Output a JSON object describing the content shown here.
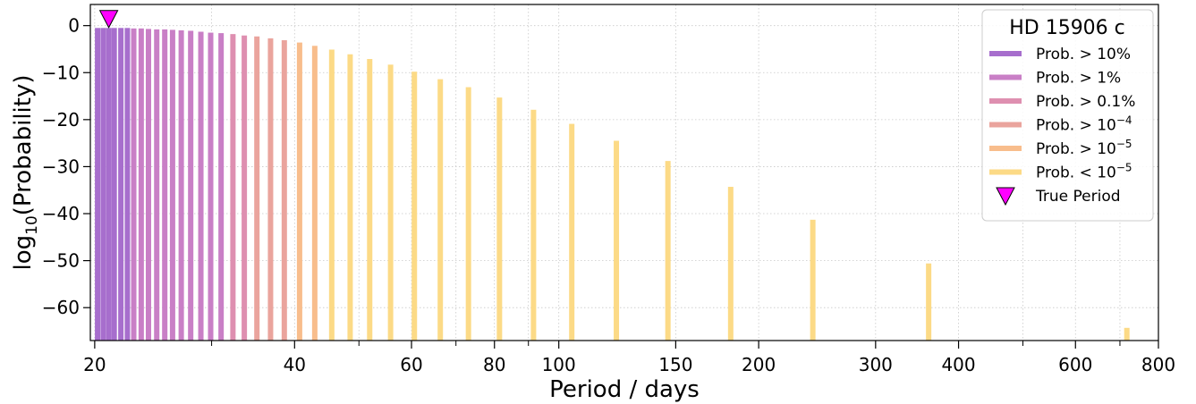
{
  "chart_data": {
    "type": "bar",
    "x_scale": "log",
    "xlabel": "Period / days",
    "ylabel_parts": {
      "base": "log",
      "sub": "10",
      "rest": "(Probability)"
    },
    "xlim": [
      19.7,
      800
    ],
    "ylim": [
      -67,
      4.5
    ],
    "grid": true,
    "x_ticks": [
      20,
      40,
      60,
      80,
      100,
      150,
      200,
      300,
      400,
      600,
      800
    ],
    "x_minor_ticks": [
      30,
      50,
      70,
      90,
      500,
      700
    ],
    "y_ticks": [
      0,
      -10,
      -20,
      -30,
      -40,
      -50,
      -60
    ],
    "y_tick_labels": [
      "0",
      "−10",
      "−20",
      "−30",
      "−40",
      "−50",
      "−60"
    ],
    "legend": {
      "title": "HD 15906 c",
      "placement": "top-right",
      "entries": [
        {
          "label": "Prob. > 10%",
          "color": "#a76ecd",
          "kind": "line"
        },
        {
          "label": "Prob. > 1%",
          "color": "#c97fc6",
          "kind": "line"
        },
        {
          "label": "Prob. > 0.1%",
          "color": "#de8fb0",
          "kind": "line"
        },
        {
          "label": "Prob. > 10",
          "sup": "−4",
          "color": "#eaa49d",
          "kind": "line"
        },
        {
          "label": "Prob. > 10",
          "sup": "−5",
          "color": "#f8bd8c",
          "kind": "line"
        },
        {
          "label": "Prob. < 10",
          "sup": "−5",
          "color": "#fcda86",
          "kind": "line"
        },
        {
          "label": "True Period",
          "color": "#ff00ff",
          "kind": "marker"
        }
      ]
    },
    "true_period": {
      "x": 21.0,
      "y": 1.5
    },
    "bars": [
      {
        "x": 20.2,
        "y": -0.5,
        "cls": 0
      },
      {
        "x": 20.6,
        "y": -0.5,
        "cls": 0
      },
      {
        "x": 21.0,
        "y": -0.5,
        "cls": 0
      },
      {
        "x": 21.4,
        "y": -0.5,
        "cls": 0
      },
      {
        "x": 21.9,
        "y": -0.5,
        "cls": 0
      },
      {
        "x": 22.4,
        "y": -0.5,
        "cls": 0
      },
      {
        "x": 22.9,
        "y": -0.6,
        "cls": 1
      },
      {
        "x": 23.5,
        "y": -0.6,
        "cls": 1
      },
      {
        "x": 24.1,
        "y": -0.7,
        "cls": 1
      },
      {
        "x": 24.8,
        "y": -0.8,
        "cls": 1
      },
      {
        "x": 25.5,
        "y": -0.8,
        "cls": 1
      },
      {
        "x": 26.2,
        "y": -0.9,
        "cls": 1
      },
      {
        "x": 27.0,
        "y": -1.0,
        "cls": 1
      },
      {
        "x": 27.9,
        "y": -1.1,
        "cls": 1
      },
      {
        "x": 28.9,
        "y": -1.3,
        "cls": 1
      },
      {
        "x": 29.9,
        "y": -1.5,
        "cls": 1
      },
      {
        "x": 31.0,
        "y": -1.6,
        "cls": 1
      },
      {
        "x": 32.3,
        "y": -1.8,
        "cls": 2
      },
      {
        "x": 33.6,
        "y": -2.1,
        "cls": 2
      },
      {
        "x": 35.1,
        "y": -2.3,
        "cls": 3
      },
      {
        "x": 36.8,
        "y": -2.7,
        "cls": 3
      },
      {
        "x": 38.6,
        "y": -3.1,
        "cls": 3
      },
      {
        "x": 40.7,
        "y": -3.6,
        "cls": 4
      },
      {
        "x": 42.9,
        "y": -4.3,
        "cls": 4
      },
      {
        "x": 45.5,
        "y": -5.1,
        "cls": 5
      },
      {
        "x": 48.5,
        "y": -6.1,
        "cls": 5
      },
      {
        "x": 51.9,
        "y": -7.1,
        "cls": 5
      },
      {
        "x": 55.8,
        "y": -8.3,
        "cls": 5
      },
      {
        "x": 60.6,
        "y": -9.8,
        "cls": 5
      },
      {
        "x": 66.3,
        "y": -11.4,
        "cls": 5
      },
      {
        "x": 73.1,
        "y": -13.1,
        "cls": 5
      },
      {
        "x": 81.4,
        "y": -15.3,
        "cls": 5
      },
      {
        "x": 91.6,
        "y": -17.9,
        "cls": 5
      },
      {
        "x": 104.6,
        "y": -20.9,
        "cls": 5
      },
      {
        "x": 122.1,
        "y": -24.5,
        "cls": 5
      },
      {
        "x": 146.0,
        "y": -28.8,
        "cls": 5
      },
      {
        "x": 181.5,
        "y": -34.3,
        "cls": 5
      },
      {
        "x": 241.3,
        "y": -41.3,
        "cls": 5
      },
      {
        "x": 360.6,
        "y": -50.6,
        "cls": 5
      },
      {
        "x": 717.0,
        "y": -64.3,
        "cls": 5
      }
    ]
  }
}
